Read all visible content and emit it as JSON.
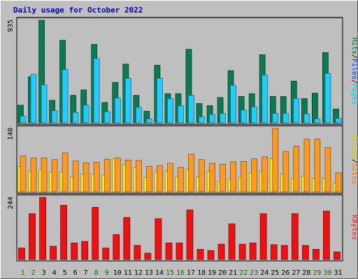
{
  "chart_data": {
    "type": "bar",
    "title": "Daily usage for October 2022",
    "categories": [
      "1",
      "2",
      "3",
      "4",
      "5",
      "6",
      "7",
      "8",
      "9",
      "10",
      "11",
      "12",
      "13",
      "14",
      "15",
      "16",
      "17",
      "18",
      "19",
      "20",
      "21",
      "22",
      "23",
      "24",
      "25",
      "26",
      "27",
      "28",
      "29",
      "30",
      "31"
    ],
    "weekend_days": [
      "1",
      "2",
      "8",
      "9",
      "15",
      "16",
      "22",
      "23",
      "29",
      "30"
    ],
    "panels": [
      {
        "id": "top",
        "max_label": "935",
        "ylim": [
          0,
          935
        ],
        "legend": [
          {
            "label": "Hits",
            "color": "#006633"
          },
          {
            "label": "Files",
            "color": "#0044dd"
          },
          {
            "label": "Pages",
            "color": "#00ccee"
          }
        ],
        "series": [
          {
            "name": "Hits",
            "color": "#0a7a55",
            "values": [
              160,
              420,
              935,
              205,
              752,
              250,
              300,
              715,
              185,
              368,
              535,
              250,
              105,
              525,
              265,
              265,
              670,
              175,
              155,
              230,
              475,
              240,
              265,
              620,
              240,
              240,
              380,
              220,
              270,
              640,
              125
            ]
          },
          {
            "name": "Pages",
            "color": "#22ccff",
            "values": [
              60,
              440,
              345,
              110,
              485,
              95,
              160,
              585,
              100,
              225,
              405,
              140,
              35,
              405,
              220,
              155,
              250,
              55,
              75,
              85,
              340,
              115,
              145,
              435,
              85,
              85,
              220,
              80,
              35,
              450,
              40
            ]
          }
        ]
      },
      {
        "id": "middle",
        "max_label": "140",
        "ylim": [
          0,
          140
        ],
        "legend": [
          {
            "label": "Visits",
            "color": "#cccc00"
          },
          {
            "label": "/",
            "color": "#000000"
          },
          {
            "label": "Sites",
            "color": "#ee7711"
          }
        ],
        "series": [
          {
            "name": "Visits",
            "color": "#ffee22",
            "values": [
              56,
              45,
              49,
              44,
              44,
              33,
              39,
              39,
              37,
              73,
              60,
              53,
              31,
              44,
              45,
              34,
              49,
              33,
              45,
              23,
              28,
              32,
              42,
              45,
              73,
              40,
              29,
              35,
              29,
              30,
              20
            ]
          },
          {
            "name": "Sites",
            "color": "#ff9922",
            "values": [
              79,
              75,
              75,
              71,
              86,
              68,
              64,
              65,
              72,
              75,
              70,
              69,
              56,
              58,
              63,
              54,
              83,
              71,
              63,
              61,
              66,
              67,
              73,
              77,
              140,
              89,
              101,
              116,
              116,
              98,
              42
            ]
          }
        ]
      },
      {
        "id": "bottom",
        "max_label": "244",
        "ylim": [
          0,
          244
        ],
        "legend": [
          {
            "label": "KBytes",
            "color": "#dd2222"
          }
        ],
        "series": [
          {
            "name": "KBytes",
            "color": "#ee1111",
            "values": [
              45,
              180,
              244,
              52,
              213,
              65,
              71,
              205,
              45,
              98,
              165,
              55,
              25,
              160,
              65,
              65,
              195,
              40,
              35,
              60,
              140,
              60,
              65,
              180,
              58,
              55,
              180,
              55,
              40,
              190,
              30
            ]
          }
        ]
      }
    ]
  }
}
